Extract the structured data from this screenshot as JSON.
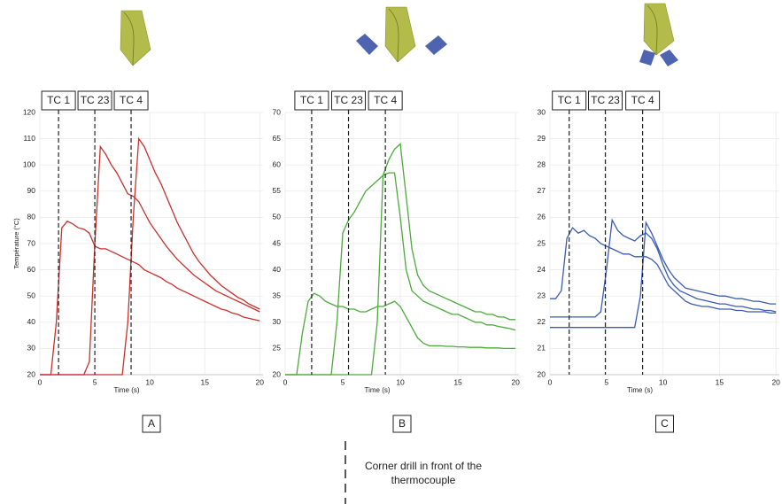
{
  "chart_data": [
    {
      "type": "line",
      "panel_label": "A",
      "xlabel": "Time (s)",
      "ylabel": "Température (°C)",
      "x": [
        0,
        0.5,
        1,
        1.5,
        2,
        2.5,
        3,
        3.5,
        4,
        4.5,
        5,
        5.5,
        6,
        6.5,
        7,
        7.5,
        8,
        8.5,
        9,
        9.5,
        10,
        10.5,
        11,
        11.5,
        12,
        12.5,
        13,
        13.5,
        14,
        14.5,
        15,
        15.5,
        16,
        16.5,
        17,
        17.5,
        18,
        18.5,
        19,
        19.5,
        20
      ],
      "series": [
        {
          "color": "#c8302c",
          "values": [
            20,
            20,
            20,
            40,
            76,
            78.5,
            77.5,
            76,
            75.5,
            74,
            69,
            68,
            68,
            67,
            66,
            65,
            64,
            63,
            62,
            60,
            59,
            58,
            57,
            55.5,
            54.5,
            53,
            52,
            51,
            50,
            49,
            48,
            47,
            46,
            45,
            44.5,
            43.5,
            43,
            42,
            41.5,
            41,
            40.5
          ]
        },
        {
          "color": "#c8302c",
          "values": [
            20,
            20,
            20,
            20,
            20,
            20,
            20,
            20,
            20,
            25,
            70,
            107,
            104,
            100,
            97,
            93,
            89,
            88,
            86,
            82,
            78,
            75,
            72,
            69,
            66.5,
            64,
            62,
            60,
            58,
            56.5,
            55,
            53.5,
            52,
            51,
            50,
            49,
            48,
            47,
            46,
            45,
            44
          ]
        },
        {
          "color": "#c8302c",
          "values": [
            20,
            20,
            20,
            20,
            20,
            20,
            20,
            20,
            20,
            20,
            20,
            20,
            20,
            20,
            20,
            20,
            40,
            80,
            110,
            107,
            102,
            97,
            93,
            88,
            83,
            78,
            74,
            70,
            66,
            63,
            60.5,
            58,
            56,
            54,
            52.5,
            51,
            49.5,
            48.5,
            47,
            46,
            45
          ]
        }
      ],
      "markers": [
        {
          "label": "TC 1",
          "x": 1.7
        },
        {
          "label": "TC 23",
          "x": 5
        },
        {
          "label": "TC 4",
          "x": 8.3
        }
      ],
      "xlim": [
        0,
        20.3
      ],
      "ylim": [
        20,
        120
      ],
      "xticks": [
        0,
        5,
        10,
        15,
        20
      ],
      "yticks": [
        20,
        30,
        40,
        50,
        60,
        70,
        80,
        90,
        100,
        110,
        120
      ],
      "grid": true
    },
    {
      "type": "line",
      "panel_label": "B",
      "xlabel": "Time (s)",
      "x": [
        0,
        0.5,
        1,
        1.5,
        2,
        2.5,
        3,
        3.5,
        4,
        4.5,
        5,
        5.5,
        6,
        6.5,
        7,
        7.5,
        8,
        8.5,
        9,
        9.5,
        10,
        10.5,
        11,
        11.5,
        12,
        12.5,
        13,
        13.5,
        14,
        14.5,
        15,
        15.5,
        16,
        16.5,
        17,
        17.5,
        18,
        18.5,
        19,
        19.5,
        20
      ],
      "series": [
        {
          "color": "#4caa3c",
          "values": [
            20,
            20,
            20,
            28,
            34,
            35.5,
            35,
            34,
            33.5,
            33,
            33,
            32.5,
            32.5,
            32,
            32,
            32.5,
            33,
            33,
            33.5,
            34,
            33,
            31,
            29,
            27,
            26,
            25.5,
            25.5,
            25.5,
            25.4,
            25.4,
            25.3,
            25.3,
            25.2,
            25.2,
            25.2,
            25.1,
            25.1,
            25.1,
            25,
            25,
            25
          ]
        },
        {
          "color": "#4caa3c",
          "values": [
            20,
            20,
            20,
            20,
            20,
            20,
            20,
            20,
            20,
            30,
            47,
            49.5,
            51,
            53,
            55,
            56,
            57,
            58,
            58.5,
            58.5,
            50,
            40,
            36,
            35,
            34,
            33.5,
            33,
            32.5,
            32,
            31.5,
            31.5,
            31,
            30.5,
            30,
            30,
            29.5,
            29.5,
            29.2,
            29,
            28.8,
            28.5
          ]
        },
        {
          "color": "#4caa3c",
          "values": [
            20,
            20,
            20,
            20,
            20,
            20,
            20,
            20,
            20,
            20,
            20,
            20,
            20,
            20,
            20,
            20,
            30,
            58,
            61,
            63,
            64,
            54,
            44,
            39,
            37,
            36,
            35.5,
            35,
            34.5,
            34,
            33.5,
            33,
            32.5,
            32,
            32,
            31.5,
            31.5,
            31,
            31,
            30.5,
            30.5
          ]
        }
      ],
      "markers": [
        {
          "label": "TC 1",
          "x": 2.3
        },
        {
          "label": "TC 23",
          "x": 5.5
        },
        {
          "label": "TC 4",
          "x": 8.7
        }
      ],
      "xlim": [
        0,
        20.3
      ],
      "ylim": [
        20,
        70
      ],
      "xticks": [
        0,
        5,
        10,
        15,
        20
      ],
      "yticks": [
        20,
        25,
        30,
        35,
        40,
        45,
        50,
        55,
        60,
        65,
        70
      ],
      "grid": true
    },
    {
      "type": "line",
      "panel_label": "C",
      "xlabel": "Time (s)",
      "x": [
        0,
        0.5,
        1,
        1.5,
        2,
        2.5,
        3,
        3.5,
        4,
        4.5,
        5,
        5.5,
        6,
        6.5,
        7,
        7.5,
        8,
        8.5,
        9,
        9.5,
        10,
        10.5,
        11,
        11.5,
        12,
        12.5,
        13,
        13.5,
        14,
        14.5,
        15,
        15.5,
        16,
        16.5,
        17,
        17.5,
        18,
        18.5,
        19,
        19.5,
        20
      ],
      "series": [
        {
          "color": "#3a5bb2",
          "values": [
            22.9,
            22.9,
            23.2,
            25.2,
            25.6,
            25.4,
            25.5,
            25.3,
            25.2,
            25.0,
            24.9,
            24.8,
            24.7,
            24.6,
            24.6,
            24.5,
            24.5,
            24.5,
            24.4,
            24.2,
            23.8,
            23.4,
            23.2,
            23.0,
            22.8,
            22.7,
            22.65,
            22.6,
            22.6,
            22.55,
            22.5,
            22.5,
            22.5,
            22.45,
            22.45,
            22.4,
            22.4,
            22.4,
            22.4,
            22.35,
            22.35
          ]
        },
        {
          "color": "#3a5bb2",
          "values": [
            22.2,
            22.2,
            22.2,
            22.2,
            22.2,
            22.2,
            22.2,
            22.2,
            22.2,
            22.4,
            24,
            25.9,
            25.5,
            25.3,
            25.2,
            25.1,
            25.3,
            25.4,
            25.2,
            24.8,
            24.2,
            23.7,
            23.4,
            23.2,
            23.1,
            23.0,
            22.9,
            22.85,
            22.8,
            22.75,
            22.7,
            22.7,
            22.65,
            22.6,
            22.6,
            22.55,
            22.5,
            22.5,
            22.45,
            22.45,
            22.4
          ]
        },
        {
          "color": "#3a5bb2",
          "values": [
            21.8,
            21.8,
            21.8,
            21.8,
            21.8,
            21.8,
            21.8,
            21.8,
            21.8,
            21.8,
            21.8,
            21.8,
            21.8,
            21.8,
            21.8,
            21.8,
            23,
            25.8,
            25.4,
            24.9,
            24.4,
            24,
            23.7,
            23.5,
            23.3,
            23.25,
            23.2,
            23.15,
            23.1,
            23.05,
            23,
            23,
            22.95,
            22.9,
            22.9,
            22.85,
            22.8,
            22.8,
            22.75,
            22.7,
            22.7
          ]
        }
      ],
      "markers": [
        {
          "label": "TC 1",
          "x": 1.7
        },
        {
          "label": "TC 23",
          "x": 4.9
        },
        {
          "label": "TC 4",
          "x": 8.2
        }
      ],
      "xlim": [
        0,
        20.3
      ],
      "ylim": [
        20,
        30
      ],
      "xticks": [
        0,
        5,
        10,
        15,
        20
      ],
      "yticks": [
        20,
        21,
        22,
        23,
        24,
        25,
        26,
        27,
        28,
        29,
        30
      ],
      "grid": true
    }
  ],
  "note": "Corner drill in front of the thermocouple"
}
